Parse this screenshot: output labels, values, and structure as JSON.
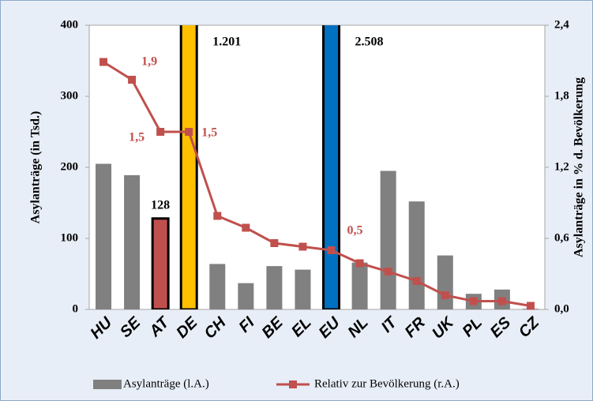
{
  "chart_data": {
    "type": "bar-line",
    "categories": [
      "HU",
      "SE",
      "AT",
      "DE",
      "CH",
      "FI",
      "BE",
      "EL",
      "EU",
      "NL",
      "IT",
      "FR",
      "UK",
      "PL",
      "ES",
      "CZ"
    ],
    "series": [
      {
        "name": "Asylanträge (l.A.)",
        "color": "#808080",
        "axis": "y",
        "colors": [
          "#808080",
          "#808080",
          "#c0504d",
          "#ffc000",
          "#808080",
          "#808080",
          "#808080",
          "#808080",
          "#0070c0",
          "#808080",
          "#808080",
          "#808080",
          "#808080",
          "#808080",
          "#808080",
          "#808080"
        ],
        "values": [
          205,
          189,
          128,
          1201,
          64,
          37,
          61,
          56,
          2508,
          66,
          195,
          152,
          76,
          22,
          28,
          1
        ],
        "value_labels": [
          null,
          null,
          "128",
          "1.201",
          null,
          null,
          null,
          null,
          "2.508",
          null,
          null,
          null,
          null,
          null,
          null,
          null
        ]
      },
      {
        "name": "Relativ zur Bevölkerung (r.A.)",
        "color": "#c0504d",
        "axis": "y2",
        "values": [
          2.09,
          1.94,
          1.5,
          1.5,
          0.79,
          0.69,
          0.56,
          0.53,
          0.5,
          0.39,
          0.32,
          0.24,
          0.12,
          0.07,
          0.07,
          0.03
        ],
        "value_labels": [
          null,
          "1,9",
          "1,5",
          "1,5",
          null,
          null,
          null,
          null,
          "0,5",
          null,
          null,
          null,
          null,
          null,
          null,
          null
        ]
      }
    ],
    "ylabel": "Asylanträge (in Tsd.)",
    "y2label": "Asylanträge in % d. Bevölkerung",
    "ylim": [
      0,
      400
    ],
    "yticks": [
      0,
      100,
      200,
      300,
      400
    ],
    "y2lim": [
      0,
      2.4
    ],
    "y2ticks": [
      {
        "value": 0,
        "label": "0,0"
      },
      {
        "value": 0.6,
        "label": "0,6"
      },
      {
        "value": 1.2,
        "label": "1,2"
      },
      {
        "value": 1.8,
        "label": "1,8"
      },
      {
        "value": 2.4,
        "label": "2,4"
      }
    ],
    "legend": "bottom"
  }
}
